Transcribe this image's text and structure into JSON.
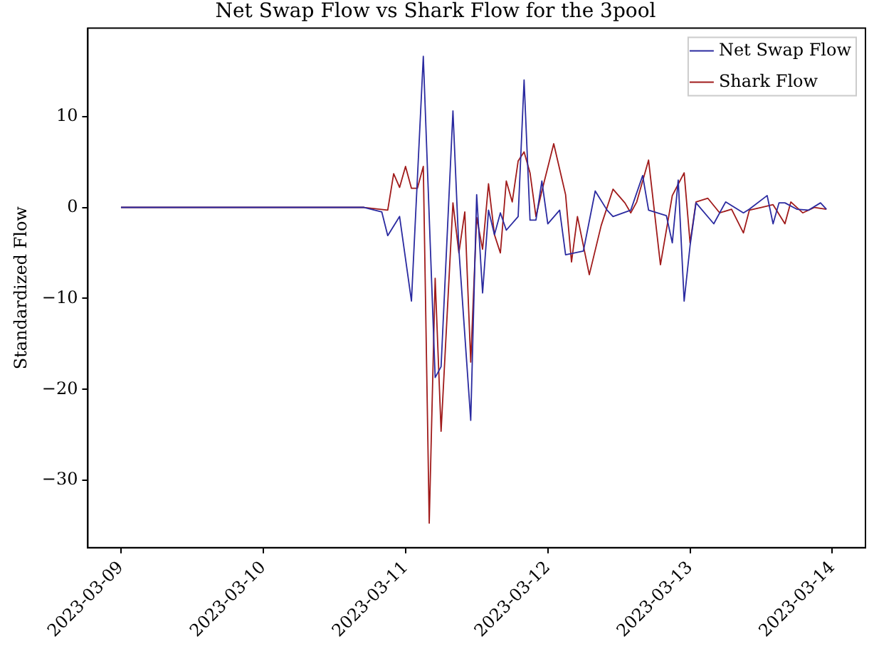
{
  "chart_data": {
    "type": "line",
    "title": "Net Swap Flow vs Shark Flow for the 3pool",
    "ylabel": "Standardized Flow",
    "legend": "top right",
    "grid": false,
    "marker": "none",
    "line_style": "solid",
    "xlim": [
      "2023-03-08T18:25",
      "2023-03-14T05:35"
    ],
    "xticks": [
      "2023-03-09",
      "2023-03-10",
      "2023-03-11",
      "2023-03-12",
      "2023-03-13",
      "2023-03-14"
    ],
    "ylim": [
      -37.4,
      19.7
    ],
    "yticks": [
      {
        "value": -30,
        "label": "−30"
      },
      {
        "value": -20,
        "label": "−20"
      },
      {
        "value": -10,
        "label": "−10"
      },
      0,
      10
    ],
    "series": [
      {
        "name": "Net Swap Flow",
        "color": "#2a2aa0",
        "x": [
          "2023-03-09T00:00",
          "2023-03-10T17:00",
          "2023-03-10T20:00",
          "2023-03-10T21:00",
          "2023-03-10T23:00",
          "2023-03-11T01:00",
          "2023-03-11T03:00",
          "2023-03-11T05:00",
          "2023-03-11T06:00",
          "2023-03-11T08:00",
          "2023-03-11T09:00",
          "2023-03-11T11:00",
          "2023-03-11T12:00",
          "2023-03-11T13:00",
          "2023-03-11T14:00",
          "2023-03-11T15:00",
          "2023-03-11T16:00",
          "2023-03-11T17:00",
          "2023-03-11T19:00",
          "2023-03-11T20:00",
          "2023-03-11T21:00",
          "2023-03-11T22:00",
          "2023-03-11T23:00",
          "2023-03-12T00:00",
          "2023-03-12T02:00",
          "2023-03-12T03:00",
          "2023-03-12T06:00",
          "2023-03-12T08:00",
          "2023-03-12T10:00",
          "2023-03-12T11:00",
          "2023-03-12T14:00",
          "2023-03-12T16:00",
          "2023-03-12T17:00",
          "2023-03-12T20:00",
          "2023-03-12T21:00",
          "2023-03-12T22:00",
          "2023-03-12T23:00",
          "2023-03-13T00:00",
          "2023-03-13T01:00",
          "2023-03-13T04:00",
          "2023-03-13T06:00",
          "2023-03-13T09:00",
          "2023-03-13T10:00",
          "2023-03-13T13:00",
          "2023-03-13T14:00",
          "2023-03-13T15:00",
          "2023-03-13T16:00",
          "2023-03-13T18:00",
          "2023-03-13T20:00",
          "2023-03-13T22:00",
          "2023-03-13T23:00"
        ],
        "values": [
          0,
          0,
          -0.5,
          -3.1,
          -1,
          -10.3,
          16.6,
          -18.7,
          -17.5,
          10.6,
          -4.6,
          -23.4,
          1.4,
          -9.4,
          -0.3,
          -3,
          -0.6,
          -2.5,
          -1,
          14,
          -1.4,
          -1.4,
          2.9,
          -1.8,
          -0.3,
          -5.2,
          -4.8,
          1.8,
          -0.3,
          -1,
          -0.3,
          3.5,
          -0.3,
          -0.9,
          -3.9,
          3,
          -10.3,
          -4.2,
          0.5,
          -1.8,
          0.6,
          -0.6,
          -0.2,
          1.3,
          -1.8,
          0.5,
          0.5,
          -0.2,
          -0.3,
          0.5,
          -0.2
        ]
      },
      {
        "name": "Shark Flow",
        "color": "#a01a1a",
        "x": [
          "2023-03-09T00:00",
          "2023-03-10T17:00",
          "2023-03-10T21:00",
          "2023-03-10T22:00",
          "2023-03-10T23:00",
          "2023-03-11T00:00",
          "2023-03-11T01:00",
          "2023-03-11T02:00",
          "2023-03-11T03:00",
          "2023-03-11T04:00",
          "2023-03-11T05:00",
          "2023-03-11T06:00",
          "2023-03-11T08:00",
          "2023-03-11T09:00",
          "2023-03-11T10:00",
          "2023-03-11T11:00",
          "2023-03-11T12:00",
          "2023-03-11T13:00",
          "2023-03-11T14:00",
          "2023-03-11T15:00",
          "2023-03-11T16:00",
          "2023-03-11T17:00",
          "2023-03-11T18:00",
          "2023-03-11T19:00",
          "2023-03-11T20:00",
          "2023-03-11T21:00",
          "2023-03-11T22:00",
          "2023-03-11T23:00",
          "2023-03-12T01:00",
          "2023-03-12T03:00",
          "2023-03-12T04:00",
          "2023-03-12T05:00",
          "2023-03-12T07:00",
          "2023-03-12T09:00",
          "2023-03-12T11:00",
          "2023-03-12T13:00",
          "2023-03-12T14:00",
          "2023-03-12T15:00",
          "2023-03-12T17:00",
          "2023-03-12T19:00",
          "2023-03-12T21:00",
          "2023-03-12T23:00",
          "2023-03-13T00:00",
          "2023-03-13T01:00",
          "2023-03-13T03:00",
          "2023-03-13T05:00",
          "2023-03-13T07:00",
          "2023-03-13T09:00",
          "2023-03-13T10:00",
          "2023-03-13T12:00",
          "2023-03-13T14:00",
          "2023-03-13T16:00",
          "2023-03-13T17:00",
          "2023-03-13T19:00",
          "2023-03-13T21:00",
          "2023-03-13T23:00"
        ],
        "values": [
          0,
          0,
          -0.3,
          3.7,
          2.2,
          4.5,
          2.1,
          2.1,
          4.5,
          -34.7,
          -7.8,
          -24.6,
          0.5,
          -5,
          -0.5,
          -17,
          -1.1,
          -4.6,
          2.6,
          -3,
          -5,
          2.9,
          0.6,
          5.1,
          6.1,
          3.8,
          -1,
          1.8,
          7,
          1.4,
          -6,
          -1,
          -7.4,
          -2,
          2,
          0.5,
          -0.6,
          0.6,
          5.2,
          -6.3,
          1.3,
          3.8,
          -3.9,
          0.6,
          1,
          -0.6,
          -0.2,
          -2.8,
          -0.3,
          0,
          0.3,
          -1.8,
          0.6,
          -0.6,
          0,
          -0.2
        ]
      }
    ]
  }
}
